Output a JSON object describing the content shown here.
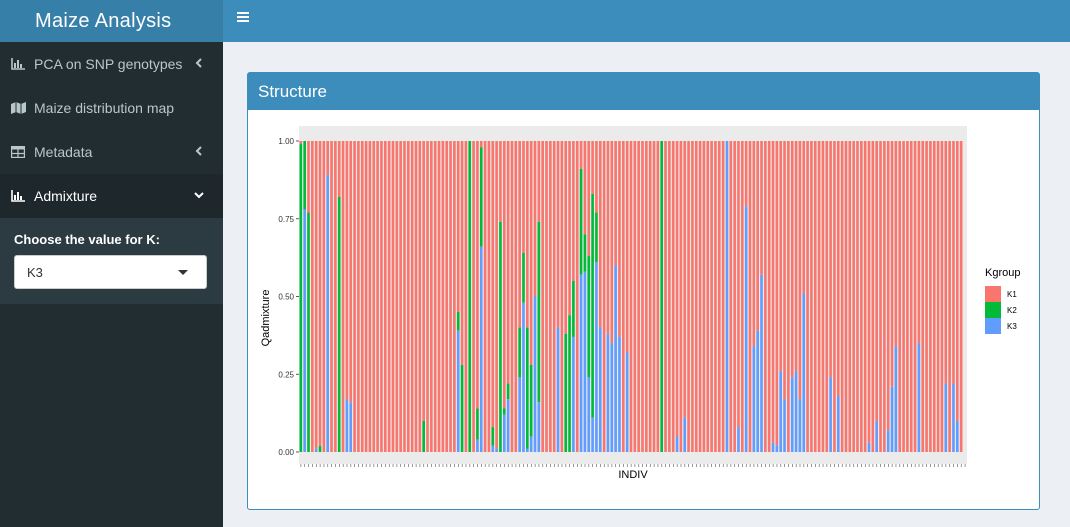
{
  "app": {
    "title": "Maize Analysis"
  },
  "sidebar": {
    "items": [
      {
        "label": "PCA on SNP genotypes",
        "icon": "bar-chart-icon",
        "expandable": true
      },
      {
        "label": "Maize distribution map",
        "icon": "map-icon",
        "expandable": false
      },
      {
        "label": "Metadata",
        "icon": "table-icon",
        "expandable": true
      },
      {
        "label": "Admixture",
        "icon": "bar-chart-icon",
        "expandable": true,
        "active": true
      }
    ],
    "k_label": "Choose the value for K:",
    "k_value": "K3"
  },
  "box": {
    "title": "Structure"
  },
  "colors": {
    "K1": "#f8766d",
    "K2": "#00ba38",
    "K3": "#619cff"
  },
  "chart_data": {
    "type": "bar",
    "stacked": true,
    "xlabel": "INDIV",
    "ylabel": "Qadmixture",
    "ylim": [
      0,
      1
    ],
    "yticks": [
      "0.00",
      "0.25",
      "0.50",
      "0.75",
      "1.00"
    ],
    "legend_title": "Kgroup",
    "legend_position": "right",
    "series_names": [
      "K1",
      "K2",
      "K3"
    ],
    "individuals_k3": [
      0.0,
      0.78,
      0.0,
      0.0,
      0.01,
      0.0,
      0.0,
      0.89,
      0.0,
      0.0,
      0.0,
      0.0,
      0.17,
      0.16,
      0.0,
      0.0,
      0.0,
      0.0,
      0.0,
      0.0,
      0.0,
      0.0,
      0.0,
      0.0,
      0.0,
      0.0,
      0.0,
      0.0,
      0.0,
      0.0,
      0.0,
      0.0,
      0.0,
      0.0,
      0.0,
      0.0,
      0.0,
      0.0,
      0.0,
      0.0,
      0.0,
      0.39,
      0.0,
      0.0,
      0.0,
      0.0,
      0.04,
      0.66,
      0.0,
      0.0,
      0.02,
      0.01,
      0.0,
      0.12,
      0.17,
      0.0,
      0.0,
      0.24,
      0.48,
      0.01,
      0.05,
      0.5,
      0.16,
      0.0,
      0.0,
      0.0,
      0.0,
      0.4,
      0.0,
      0.0,
      0.0,
      0.37,
      0.0,
      0.57,
      0.58,
      0.24,
      0.11,
      0.61,
      0.4,
      0.0,
      0.38,
      0.35,
      0.6,
      0.37,
      0.0,
      0.32,
      0.0,
      0.0,
      0.0,
      0.0,
      0.0,
      0.0,
      0.0,
      0.0,
      0.0,
      0.0,
      0.0,
      0.0,
      0.05,
      0.0,
      0.11,
      0.0,
      0.0,
      0.0,
      0.0,
      0.0,
      0.0,
      0.0,
      0.0,
      0.0,
      0.0,
      1.0,
      0.0,
      0.0,
      0.08,
      0.0,
      0.79,
      0.0,
      0.34,
      0.39,
      0.57,
      0.0,
      0.0,
      0.03,
      0.02,
      0.26,
      0.17,
      0.0,
      0.24,
      0.26,
      0.17,
      0.51,
      0.0,
      0.0,
      0.0,
      0.0,
      0.0,
      0.0,
      0.24,
      0.0,
      0.18,
      0.0,
      0.0,
      0.0,
      0.0,
      0.0,
      0.0,
      0.0,
      0.03,
      0.0,
      0.1,
      0.0,
      0.0,
      0.07,
      0.21,
      0.34,
      0.0,
      0.0,
      0.0,
      0.0,
      0.0,
      0.35,
      0.0,
      0.0,
      0.0,
      0.0,
      0.0,
      0.0,
      0.22,
      0.0,
      0.22,
      0.1,
      0.0,
      0.0
    ],
    "individuals_k2": [
      0.99,
      0.22,
      0.77,
      0.0,
      0.0,
      0.02,
      0.0,
      0.0,
      0.0,
      0.0,
      0.82,
      0.0,
      0.0,
      0.0,
      0.0,
      0.0,
      0.0,
      0.0,
      0.0,
      0.0,
      0.0,
      0.0,
      0.0,
      0.0,
      0.0,
      0.0,
      0.0,
      0.0,
      0.0,
      0.0,
      0.0,
      0.0,
      0.1,
      0.0,
      0.0,
      0.0,
      0.0,
      0.0,
      0.0,
      0.0,
      0.0,
      0.06,
      0.28,
      0.0,
      1.0,
      0.0,
      0.1,
      0.32,
      0.0,
      0.0,
      0.06,
      0.0,
      0.74,
      0.02,
      0.05,
      0.0,
      0.0,
      0.16,
      0.16,
      0.39,
      0.23,
      0.0,
      0.58,
      0.0,
      0.0,
      0.0,
      0.0,
      0.0,
      0.0,
      0.38,
      0.44,
      0.18,
      0.0,
      0.34,
      0.12,
      0.39,
      0.72,
      0.16,
      0.0,
      0.0,
      0.0,
      0.0,
      0.0,
      0.0,
      0.0,
      0.0,
      0.0,
      0.0,
      0.0,
      0.0,
      0.0,
      0.0,
      0.0,
      0.0,
      1.0,
      0.0,
      0.0,
      0.0,
      0.0,
      0.0,
      0.0,
      0.0,
      0.0,
      0.0,
      0.0,
      0.0,
      0.0,
      0.0,
      0.0,
      0.0,
      0.0,
      0.0,
      0.0,
      0.0,
      0.0,
      0.0,
      0.0,
      0.0,
      0.0,
      0.0,
      0.0,
      0.0,
      0.0,
      0.0,
      0.0,
      0.0,
      0.0,
      0.0,
      0.0,
      0.0,
      0.0,
      0.0,
      0.0,
      0.0,
      0.0,
      0.0,
      0.0,
      0.0,
      0.0,
      0.0,
      0.0,
      0.0,
      0.0,
      0.0,
      0.0,
      0.0,
      0.0,
      0.0,
      0.0,
      0.0,
      0.0,
      0.0,
      0.0,
      0.0,
      0.0,
      0.0,
      0.0,
      0.0,
      0.0,
      0.0,
      0.0,
      0.0,
      0.0,
      0.0,
      0.0,
      0.0,
      0.0,
      0.0,
      0.0,
      0.0,
      0.0,
      0.0,
      0.0
    ]
  }
}
